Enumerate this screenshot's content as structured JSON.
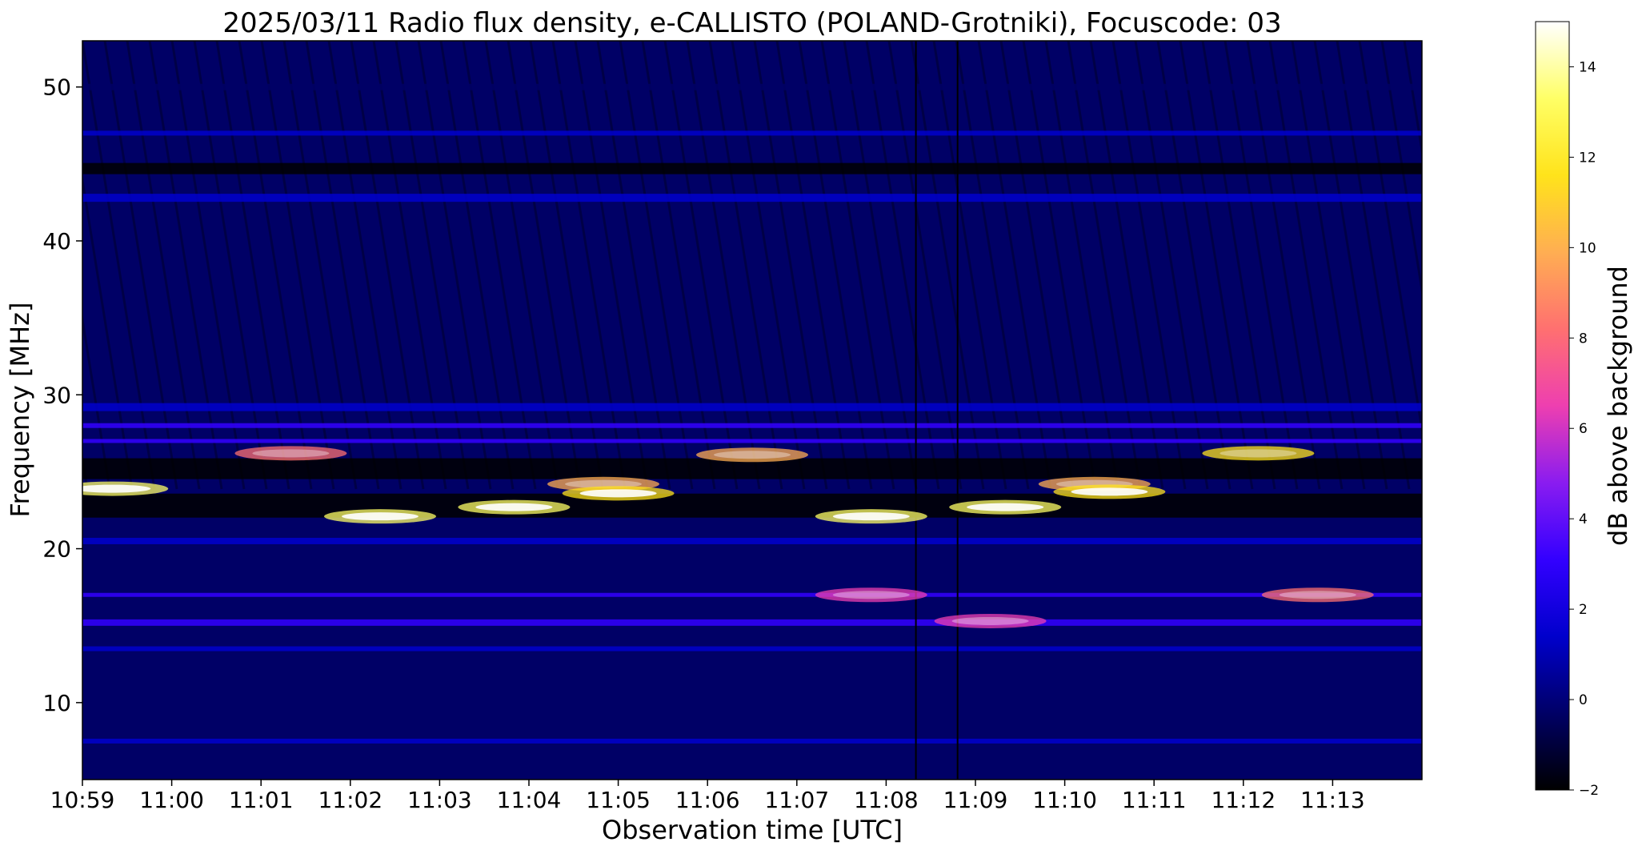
{
  "chart_data": {
    "type": "heatmap",
    "title": "2025/03/11  Radio flux density, e-CALLISTO (POLAND-Grotniki), Focuscode: 03",
    "xlabel": "Observation time [UTC]",
    "ylabel": "Frequency [MHz]",
    "x_ticks": [
      "10:59",
      "11:00",
      "11:01",
      "11:02",
      "11:03",
      "11:04",
      "11:05",
      "11:06",
      "11:07",
      "11:08",
      "11:09",
      "11:10",
      "11:11",
      "11:12",
      "11:13"
    ],
    "xlim_minutes": [
      "10:59",
      "11:14"
    ],
    "y_ticks": [
      10,
      20,
      30,
      40,
      50
    ],
    "ylim": [
      5,
      53
    ],
    "colorbar": {
      "label": "dB above background",
      "ticks": [
        -2,
        0,
        2,
        4,
        6,
        8,
        10,
        12,
        14
      ],
      "range": [
        -2,
        15
      ],
      "colormap": "gnuplot2",
      "colors": [
        "#000000",
        "#000066",
        "#0000cc",
        "#3300ff",
        "#8a1cf0",
        "#ee3fb0",
        "#ff7070",
        "#ffae52",
        "#ffe31b",
        "#ffff66",
        "#ffffff"
      ]
    },
    "bright_features": [
      {
        "time": "10:59:20",
        "freq_mhz": 23.9,
        "db": 14
      },
      {
        "time": "11:01:20",
        "freq_mhz": 26.2,
        "db": 9
      },
      {
        "time": "11:02:20",
        "freq_mhz": 22.1,
        "db": 13
      },
      {
        "time": "11:03:50",
        "freq_mhz": 22.7,
        "db": 13
      },
      {
        "time": "11:04:50",
        "freq_mhz": 24.2,
        "db": 10
      },
      {
        "time": "11:05:00",
        "freq_mhz": 23.6,
        "db": 12
      },
      {
        "time": "11:06:30",
        "freq_mhz": 26.1,
        "db": 10
      },
      {
        "time": "11:07:50",
        "freq_mhz": 22.1,
        "db": 14
      },
      {
        "time": "11:09:20",
        "freq_mhz": 22.7,
        "db": 13
      },
      {
        "time": "11:10:20",
        "freq_mhz": 24.2,
        "db": 10
      },
      {
        "time": "11:10:30",
        "freq_mhz": 23.7,
        "db": 12
      },
      {
        "time": "11:12:10",
        "freq_mhz": 26.2,
        "db": 11
      },
      {
        "time": "11:09:10",
        "freq_mhz": 15.3,
        "db": 7
      },
      {
        "time": "11:12:50",
        "freq_mhz": 17.0,
        "db": 9
      },
      {
        "time": "11:07:50",
        "freq_mhz": 17.0,
        "db": 6
      }
    ],
    "grid": false
  }
}
